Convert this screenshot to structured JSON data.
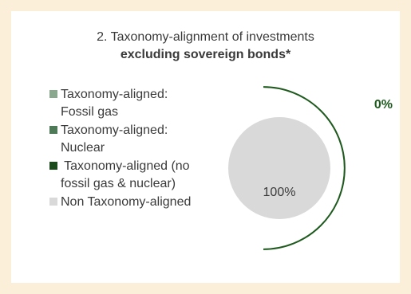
{
  "chart_data": {
    "type": "pie",
    "title_line1": "2. Taxonomy-alignment of investments",
    "title_line2": "excluding sovereign bonds*",
    "series": [
      {
        "name": "Taxonomy-aligned: Fossil gas",
        "value": 0,
        "color": "#8aa88e"
      },
      {
        "name": "Taxonomy-aligned: Nuclear",
        "value": 0,
        "color": "#4f7a57"
      },
      {
        "name": "Taxonomy-aligned (no fossil gas & nuclear)",
        "value": 0,
        "color": "#1b4a1b"
      },
      {
        "name": "Non Taxonomy-aligned",
        "value": 100,
        "color": "#d9d9d9"
      }
    ],
    "data_labels": [
      {
        "series": "Non Taxonomy-aligned",
        "text": "100%"
      },
      {
        "series": "Taxonomy-aligned",
        "text": "0%"
      }
    ],
    "legend_position": "left"
  },
  "legend_items": [
    {
      "line1": "Taxonomy-aligned:",
      "line2": "Fossil gas",
      "color": "#8aa88e"
    },
    {
      "line1": "Taxonomy-aligned:",
      "line2": "Nuclear",
      "color": "#4f7a57"
    },
    {
      "line1": " Taxonomy-aligned (no",
      "line2": "fossil gas & nuclear)",
      "color": "#1b4a1b"
    },
    {
      "line1": "Non Taxonomy-aligned",
      "line2": "",
      "color": "#d9d9d9"
    }
  ],
  "arc_color": "#1e5a1e"
}
